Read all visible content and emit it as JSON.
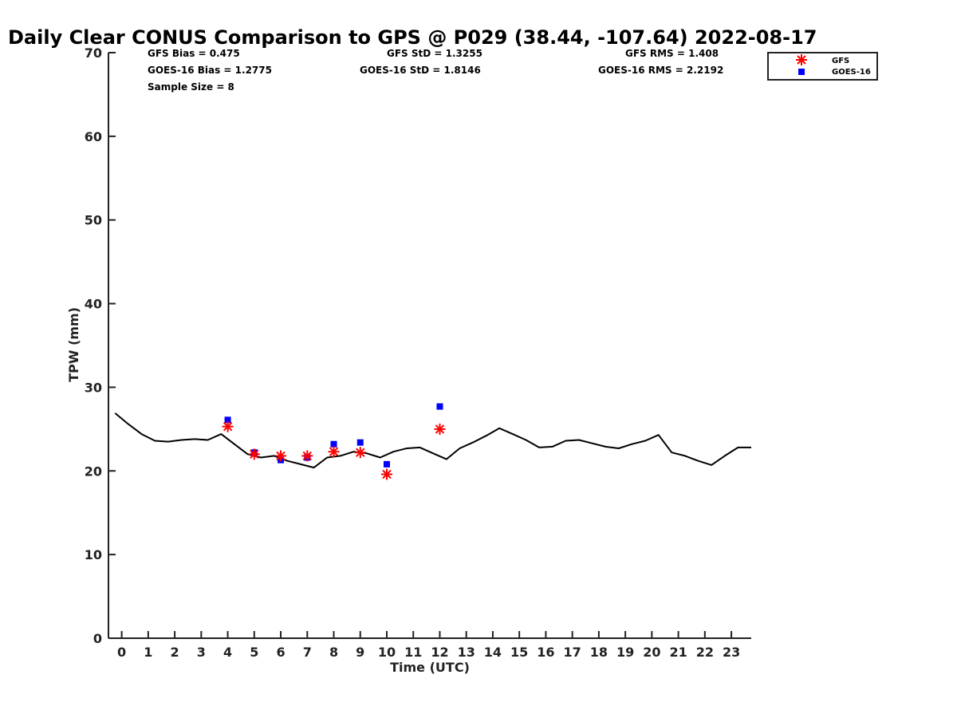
{
  "chart_data": {
    "type": "scatter",
    "title": "Daily Clear CONUS Comparison to GPS @ P029 (38.44, -107.64) 2022-08-17",
    "xlabel": "Time (UTC)",
    "ylabel": "TPW (mm)",
    "xlim": [
      -0.5,
      23.75
    ],
    "ylim": [
      0,
      70
    ],
    "x_ticks": [
      0,
      1,
      2,
      3,
      4,
      5,
      6,
      7,
      8,
      9,
      10,
      11,
      12,
      13,
      14,
      15,
      16,
      17,
      18,
      19,
      20,
      21,
      22,
      23
    ],
    "y_ticks": [
      0,
      10,
      20,
      30,
      40,
      50,
      60,
      70
    ],
    "grid": false,
    "legend_position": "top-right",
    "stats": {
      "gfs_bias": "GFS Bias = 0.475",
      "goes_bias": "GOES-16 Bias = 1.2775",
      "sample_size": "Sample Size = 8",
      "gfs_std": "GFS StD = 1.3255",
      "goes_std": "GOES-16 StD = 1.8146",
      "gfs_rms": "GFS RMS = 1.408",
      "goes_rms": "GOES-16 RMS = 2.2192"
    },
    "gps_line": {
      "color": "#000000",
      "x": [
        -0.25,
        0.25,
        0.75,
        1.25,
        1.75,
        2.25,
        2.75,
        3.25,
        3.75,
        4.25,
        4.75,
        5.25,
        5.75,
        6.25,
        6.75,
        7.25,
        7.75,
        8.25,
        8.75,
        9.25,
        9.75,
        10.25,
        10.75,
        11.25,
        11.75,
        12.25,
        12.75,
        13.25,
        13.75,
        14.25,
        14.75,
        15.25,
        15.75,
        16.25,
        16.75,
        17.25,
        17.75,
        18.25,
        18.75,
        19.25,
        19.75,
        20.25,
        20.75,
        21.25,
        21.75,
        22.25,
        22.75,
        23.25,
        23.75
      ],
      "y": [
        26.9,
        25.6,
        24.4,
        23.6,
        23.5,
        23.7,
        23.8,
        23.7,
        24.4,
        23.2,
        22.0,
        21.6,
        21.8,
        21.2,
        20.8,
        20.4,
        21.6,
        21.8,
        22.3,
        22.1,
        21.6,
        22.3,
        22.7,
        22.8,
        22.1,
        21.4,
        22.7,
        23.4,
        24.2,
        25.1,
        24.4,
        23.7,
        22.8,
        22.9,
        23.6,
        23.7,
        23.3,
        22.9,
        22.7,
        23.2,
        23.6,
        24.3,
        22.2,
        21.8,
        21.2,
        20.7,
        21.8,
        22.8,
        22.8
      ]
    },
    "series": [
      {
        "name": "GFS",
        "color": "#ff0000",
        "marker": "asterisk",
        "x": [
          4,
          5,
          6,
          7,
          8,
          9,
          10,
          12
        ],
        "y": [
          25.3,
          22.0,
          21.8,
          21.8,
          22.3,
          22.2,
          19.6,
          25.0
        ]
      },
      {
        "name": "GOES-16",
        "color": "#0000ff",
        "marker": "square",
        "x": [
          4,
          5,
          6,
          7,
          8,
          9,
          10,
          12
        ],
        "y": [
          26.1,
          22.2,
          21.3,
          21.6,
          23.2,
          23.4,
          20.8,
          27.7
        ]
      }
    ]
  }
}
